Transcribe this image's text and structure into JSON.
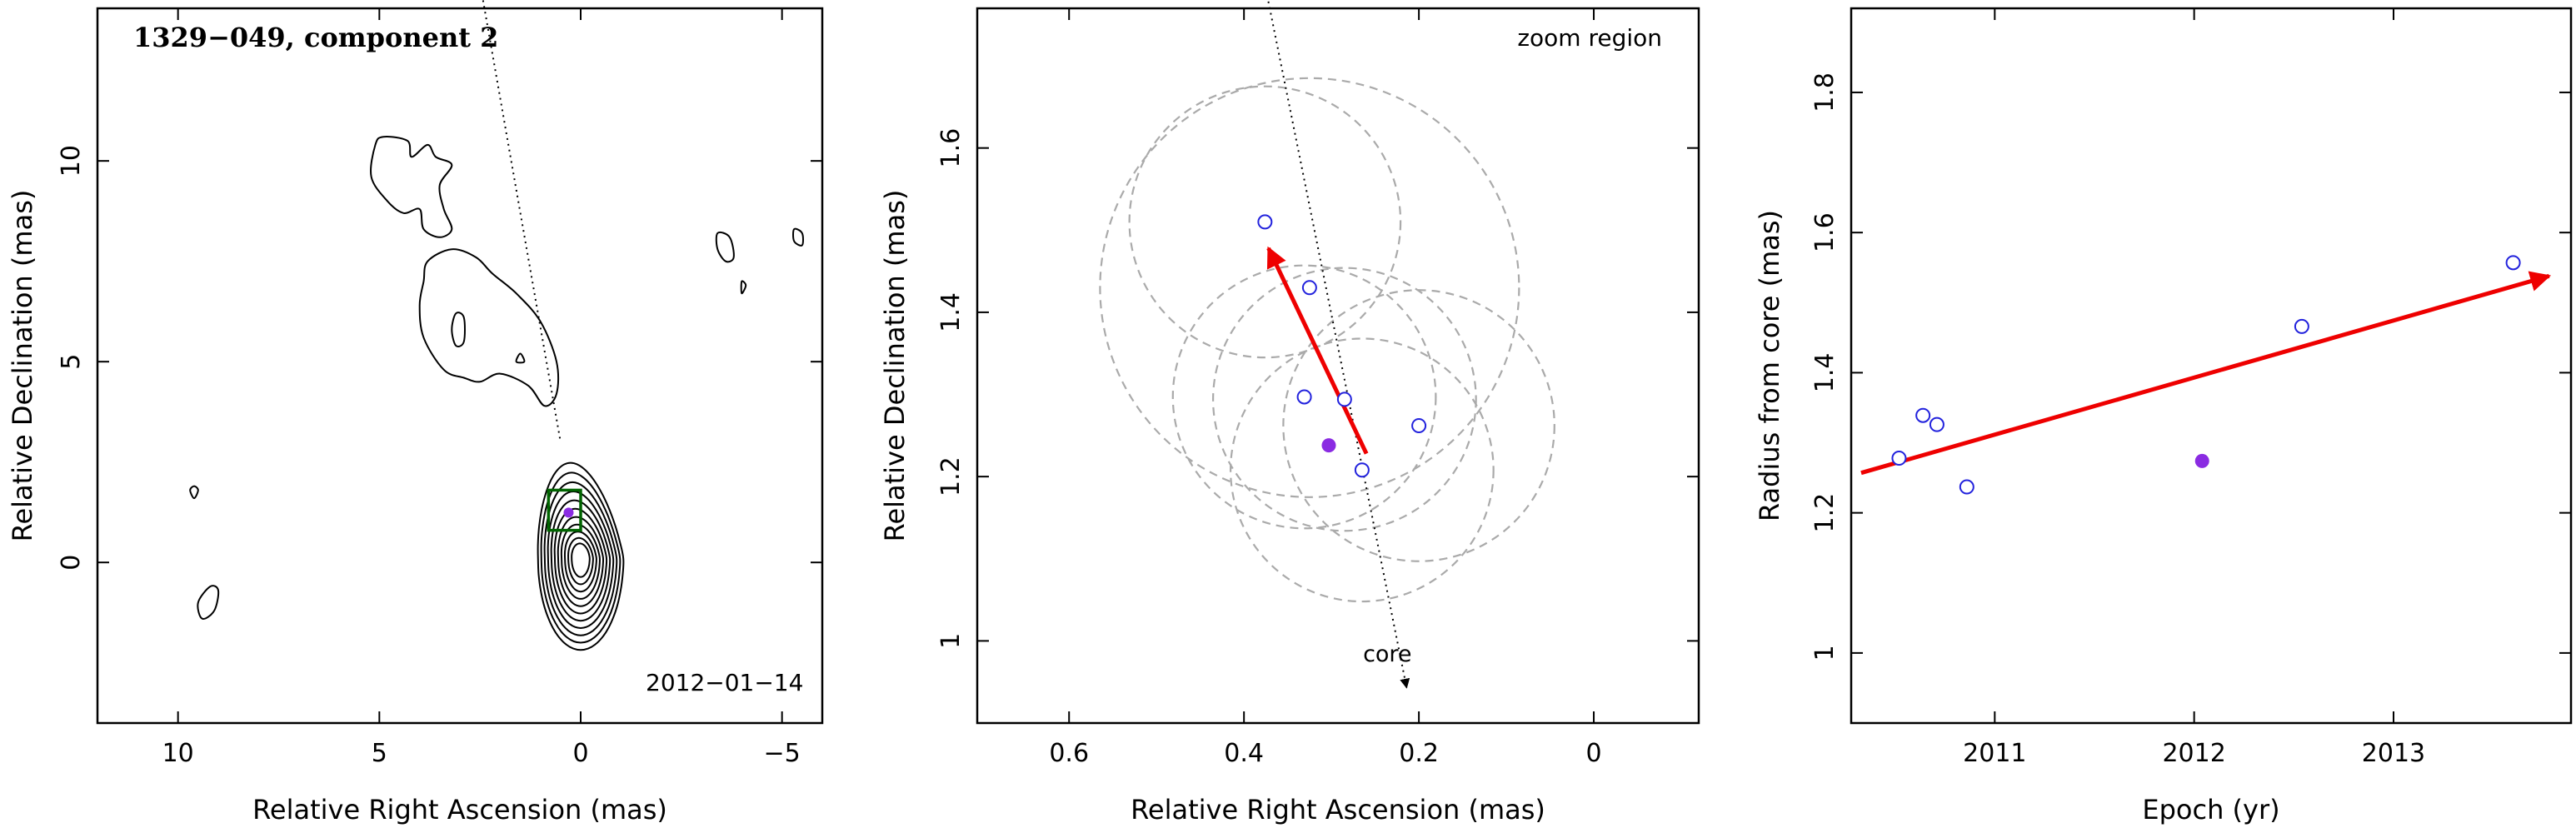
{
  "chart_data": [
    {
      "type": "contour",
      "title": "1329−049, component 2",
      "annotation": "2012−01−14",
      "xlabel": "Relative Right Ascension (mas)",
      "ylabel": "Relative Declination (mas)",
      "xlim": [
        12,
        -6
      ],
      "ylim": [
        -4,
        13.8
      ],
      "xticks": [
        10,
        5,
        0,
        -5
      ],
      "xtick_labels": [
        "10",
        "5",
        "0",
        "−5"
      ],
      "yticks": [
        0,
        5,
        10
      ],
      "ytick_labels": [
        "0",
        "5",
        "10"
      ],
      "core_contour_levels": 11,
      "core_center": [
        0.0,
        0.1
      ],
      "jet_contours": [
        {
          "name": "knot-a",
          "points": [
            [
              5.1,
              10.4
            ],
            [
              4.9,
              10.6
            ],
            [
              4.3,
              10.5
            ],
            [
              4.2,
              10.1
            ],
            [
              3.8,
              10.4
            ],
            [
              3.6,
              10.1
            ],
            [
              3.2,
              9.9
            ],
            [
              3.5,
              9.4
            ],
            [
              3.4,
              8.8
            ],
            [
              3.2,
              8.3
            ],
            [
              3.5,
              8.1
            ],
            [
              3.9,
              8.3
            ],
            [
              4.0,
              8.8
            ],
            [
              4.4,
              8.7
            ],
            [
              4.8,
              9.0
            ],
            [
              5.2,
              9.6
            ]
          ]
        },
        {
          "name": "knot-b",
          "points": [
            [
              3.8,
              7.5
            ],
            [
              3.2,
              7.8
            ],
            [
              2.6,
              7.6
            ],
            [
              2.2,
              7.2
            ],
            [
              1.6,
              6.7
            ],
            [
              1.0,
              6.0
            ],
            [
              0.6,
              5.0
            ],
            [
              0.6,
              4.2
            ],
            [
              0.9,
              3.9
            ],
            [
              1.3,
              4.4
            ],
            [
              2.0,
              4.7
            ],
            [
              2.5,
              4.5
            ],
            [
              2.9,
              4.6
            ],
            [
              3.4,
              4.8
            ],
            [
              3.9,
              5.6
            ],
            [
              4.0,
              6.4
            ],
            [
              3.9,
              7.0
            ]
          ]
        },
        {
          "name": "knot-b-inner",
          "points": [
            [
              3.1,
              6.2
            ],
            [
              2.9,
              6.1
            ],
            [
              2.9,
              5.5
            ],
            [
              3.1,
              5.4
            ],
            [
              3.2,
              5.8
            ]
          ]
        },
        {
          "name": "knot-c",
          "points": [
            [
              1.6,
              5.0
            ],
            [
              1.5,
              5.2
            ],
            [
              1.4,
              5.0
            ]
          ]
        },
        {
          "name": "spot-1",
          "points": [
            [
              9.6,
              1.9
            ],
            [
              9.5,
              1.8
            ],
            [
              9.6,
              1.6
            ],
            [
              9.7,
              1.8
            ]
          ]
        },
        {
          "name": "spot-2",
          "points": [
            [
              9.2,
              -0.6
            ],
            [
              9.0,
              -0.7
            ],
            [
              9.1,
              -1.2
            ],
            [
              9.4,
              -1.4
            ],
            [
              9.5,
              -1.0
            ]
          ]
        },
        {
          "name": "spot-3",
          "points": [
            [
              -3.4,
              8.2
            ],
            [
              -3.7,
              8.1
            ],
            [
              -3.8,
              7.6
            ],
            [
              -3.6,
              7.5
            ],
            [
              -3.4,
              7.8
            ]
          ]
        },
        {
          "name": "spot-4",
          "points": [
            [
              -5.3,
              8.3
            ],
            [
              -5.5,
              8.2
            ],
            [
              -5.5,
              7.9
            ],
            [
              -5.3,
              8.0
            ]
          ]
        },
        {
          "name": "spot-5",
          "points": [
            [
              -4.0,
              7.0
            ],
            [
              -4.1,
              6.9
            ],
            [
              -4.0,
              6.7
            ]
          ]
        }
      ],
      "jet_axis": {
        "from": [
          2.6,
          15.0
        ],
        "to": [
          0.5,
          3.0
        ]
      },
      "zoom_box": {
        "x": [
          0.8,
          0.0
        ],
        "y": [
          0.8,
          1.8
        ]
      },
      "marker_position": [
        0.3,
        1.24
      ]
    },
    {
      "type": "scatter",
      "annotation": "zoom region",
      "xlabel": "Relative Right Ascension (mas)",
      "ylabel": "Relative Declination (mas)",
      "xlim": [
        0.705,
        -0.12
      ],
      "ylim": [
        0.9,
        1.77
      ],
      "xticks": [
        0.6,
        0.4,
        0.2,
        0
      ],
      "xtick_labels": [
        "0.6",
        "0.4",
        "0.2",
        "0"
      ],
      "yticks": [
        1.0,
        1.2,
        1.4,
        1.6
      ],
      "ytick_labels": [
        "1",
        "1.2",
        "1.4",
        "1.6"
      ],
      "points": [
        {
          "x": 0.376,
          "y": 1.51
        },
        {
          "x": 0.325,
          "y": 1.43
        },
        {
          "x": 0.331,
          "y": 1.297
        },
        {
          "x": 0.285,
          "y": 1.294
        },
        {
          "x": 0.265,
          "y": 1.208
        },
        {
          "x": 0.2,
          "y": 1.262
        }
      ],
      "highlight_point": {
        "x": 0.303,
        "y": 1.238
      },
      "error_circles": [
        {
          "x": 0.376,
          "y": 1.51,
          "r": 0.165
        },
        {
          "x": 0.325,
          "y": 1.43,
          "r": 0.255
        },
        {
          "x": 0.331,
          "y": 1.297,
          "r": 0.16
        },
        {
          "x": 0.285,
          "y": 1.294,
          "r": 0.16
        },
        {
          "x": 0.265,
          "y": 1.208,
          "r": 0.16
        },
        {
          "x": 0.2,
          "y": 1.262,
          "r": 0.165
        }
      ],
      "velocity_arrow": {
        "from": [
          0.26,
          1.228
        ],
        "to": [
          0.372,
          1.478
        ]
      },
      "jet_axis": {
        "from": [
          0.38,
          1.82
        ],
        "to": [
          0.214,
          0.943
        ]
      },
      "core_label": "core",
      "core_label_position": [
        0.236,
        0.975
      ]
    },
    {
      "type": "scatter",
      "xlabel": "Epoch (yr)",
      "ylabel": "Radius from core (mas)",
      "xlim": [
        2010.28,
        2013.89
      ],
      "ylim": [
        0.9,
        1.92
      ],
      "xticks": [
        2011,
        2012,
        2013
      ],
      "xtick_labels": [
        "2011",
        "2012",
        "2013"
      ],
      "yticks": [
        1.0,
        1.2,
        1.4,
        1.6,
        1.8
      ],
      "ytick_labels": [
        "1",
        "1.2",
        "1.4",
        "1.6",
        "1.8"
      ],
      "points": [
        {
          "x": 2010.52,
          "y": 1.278
        },
        {
          "x": 2010.64,
          "y": 1.339
        },
        {
          "x": 2010.71,
          "y": 1.326
        },
        {
          "x": 2010.86,
          "y": 1.237
        },
        {
          "x": 2012.54,
          "y": 1.466
        },
        {
          "x": 2013.6,
          "y": 1.557
        }
      ],
      "highlight_point": {
        "x": 2012.04,
        "y": 1.274
      },
      "fit_arrow": {
        "from": [
          2010.33,
          1.257
        ],
        "to": [
          2013.78,
          1.538
        ]
      }
    }
  ],
  "colors": {
    "axis": "#000000",
    "open_marker": "#2222dd",
    "filled_marker": "#8a2be2",
    "arrow": "#ee0000",
    "circle": "#aaaaaa",
    "box": "#006400"
  }
}
